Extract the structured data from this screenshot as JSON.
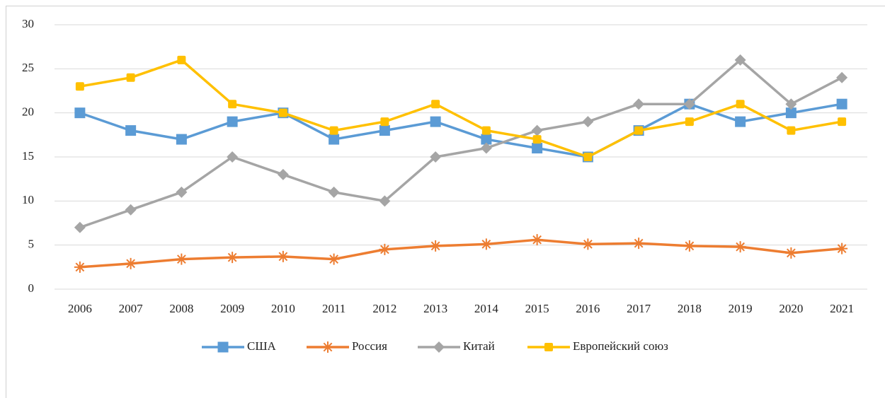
{
  "chart_data": {
    "type": "line",
    "categories": [
      "2006",
      "2007",
      "2008",
      "2009",
      "2010",
      "2011",
      "2012",
      "2013",
      "2014",
      "2015",
      "2016",
      "2017",
      "2018",
      "2019",
      "2020",
      "2021"
    ],
    "series": [
      {
        "name": "США",
        "color": "#5b9bd5",
        "marker": "square",
        "values": [
          20,
          18,
          17,
          19,
          20,
          17,
          18,
          19,
          17,
          16,
          15,
          18,
          21,
          19,
          20,
          21
        ]
      },
      {
        "name": "Россия",
        "color": "#ed7d31",
        "marker": "star",
        "values": [
          2.5,
          2.9,
          3.4,
          3.6,
          3.7,
          3.4,
          4.5,
          4.9,
          5.1,
          5.6,
          5.1,
          5.2,
          4.9,
          4.8,
          4.1,
          4.6
        ]
      },
      {
        "name": "Китай",
        "color": "#a5a5a5",
        "marker": "diamond",
        "values": [
          7,
          9,
          11,
          15,
          13,
          11,
          10,
          15,
          16,
          18,
          19,
          21,
          21,
          26,
          21,
          24
        ]
      },
      {
        "name": "Европейский союз",
        "color": "#ffc000",
        "marker": "square",
        "values": [
          23,
          24,
          26,
          21,
          20,
          18,
          19,
          21,
          18,
          17,
          15,
          18,
          19,
          21,
          18,
          19
        ]
      }
    ],
    "ylim": [
      0,
      30
    ],
    "yticks": [
      0,
      5,
      10,
      15,
      20,
      25,
      30
    ],
    "grid": true,
    "legend": "bottom"
  }
}
